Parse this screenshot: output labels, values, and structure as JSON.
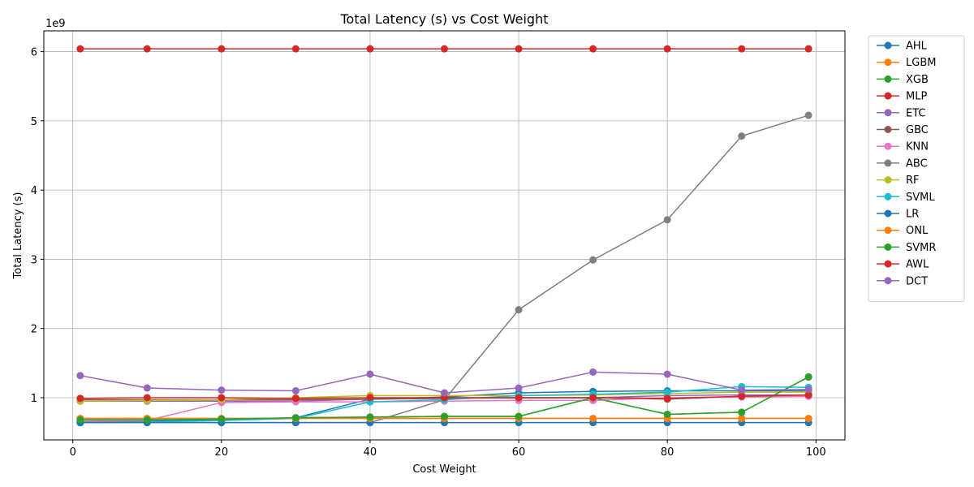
{
  "chart_data": {
    "type": "line",
    "title": "Total Latency (s) vs Cost Weight",
    "xlabel": "Cost Weight",
    "ylabel": "Total Latency (s)",
    "offset_text": "1e9",
    "xlim": [
      -3.9,
      103.9
    ],
    "ylim": [
      0.39,
      6.3
    ],
    "x_ticks": [
      0,
      20,
      40,
      60,
      80,
      100
    ],
    "y_ticks": [
      1,
      2,
      3,
      4,
      5,
      6
    ],
    "grid": true,
    "legend_position": "outside-right",
    "x": [
      1,
      10,
      20,
      30,
      40,
      50,
      60,
      70,
      80,
      90,
      99
    ],
    "series": [
      {
        "name": "AHL",
        "color": "#1f77b4",
        "values": [
          0.65,
          0.66,
          0.68,
          0.71,
          0.98,
          1.01,
          1.07,
          1.09,
          1.1,
          1.1,
          1.1
        ]
      },
      {
        "name": "LGBM",
        "color": "#ff7f0e",
        "values": [
          0.7,
          0.7,
          0.7,
          0.7,
          0.7,
          0.7,
          0.7,
          0.7,
          0.7,
          0.7,
          0.7
        ]
      },
      {
        "name": "XGB",
        "color": "#2ca02c",
        "values": [
          0.68,
          0.68,
          0.69,
          0.71,
          0.72,
          0.73,
          0.73,
          1.0,
          0.76,
          0.79,
          1.3
        ]
      },
      {
        "name": "MLP",
        "color": "#d62728",
        "values": [
          6.04,
          6.04,
          6.04,
          6.04,
          6.04,
          6.04,
          6.04,
          6.04,
          6.04,
          6.04,
          6.04
        ]
      },
      {
        "name": "ETC",
        "color": "#9467bd",
        "values": [
          0.95,
          0.95,
          0.95,
          0.95,
          0.98,
          1.0,
          1.0,
          1.0,
          1.03,
          1.04,
          1.04
        ]
      },
      {
        "name": "GBC",
        "color": "#8c564b",
        "values": [
          0.97,
          0.97,
          0.97,
          0.97,
          0.98,
          0.99,
          1.0,
          1.0,
          0.98,
          1.02,
          1.04
        ]
      },
      {
        "name": "KNN",
        "color": "#e377c2",
        "values": [
          0.66,
          0.67,
          0.93,
          0.94,
          0.94,
          0.95,
          0.96,
          0.96,
          1.0,
          1.01,
          1.02
        ]
      },
      {
        "name": "ABC",
        "color": "#7f7f7f",
        "values": [
          0.64,
          0.64,
          0.64,
          0.64,
          0.64,
          0.97,
          2.27,
          2.99,
          3.57,
          4.78,
          5.08
        ]
      },
      {
        "name": "RF",
        "color": "#bcbd22",
        "values": [
          0.95,
          0.96,
          0.97,
          1.0,
          1.03,
          1.03,
          1.03,
          1.04,
          1.06,
          1.08,
          1.08
        ]
      },
      {
        "name": "SVML",
        "color": "#17becf",
        "values": [
          0.64,
          0.65,
          0.67,
          0.7,
          0.94,
          0.97,
          1.03,
          1.05,
          1.08,
          1.16,
          1.15
        ]
      },
      {
        "name": "LR",
        "color": "#1f77b4",
        "values": [
          0.64,
          0.64,
          0.64,
          0.64,
          0.64,
          0.64,
          0.64,
          0.64,
          0.64,
          0.64,
          0.64
        ]
      },
      {
        "name": "ONL",
        "color": "#ff7f0e",
        "values": [
          0.7,
          0.7,
          0.7,
          0.7,
          0.7,
          0.7,
          0.7,
          0.7,
          0.7,
          0.7,
          0.7
        ]
      },
      {
        "name": "SVMR",
        "color": "#2ca02c",
        "values": [
          0.68,
          0.68,
          0.69,
          0.71,
          0.72,
          0.73,
          0.73,
          1.0,
          0.76,
          0.79,
          1.3
        ]
      },
      {
        "name": "AWL",
        "color": "#d62728",
        "values": [
          0.99,
          1.0,
          1.0,
          0.99,
          1.0,
          1.0,
          1.0,
          1.0,
          0.99,
          1.02,
          1.04
        ]
      },
      {
        "name": "DCT",
        "color": "#9467bd",
        "values": [
          1.32,
          1.14,
          1.11,
          1.1,
          1.34,
          1.07,
          1.14,
          1.37,
          1.34,
          1.11,
          1.12
        ]
      }
    ]
  }
}
